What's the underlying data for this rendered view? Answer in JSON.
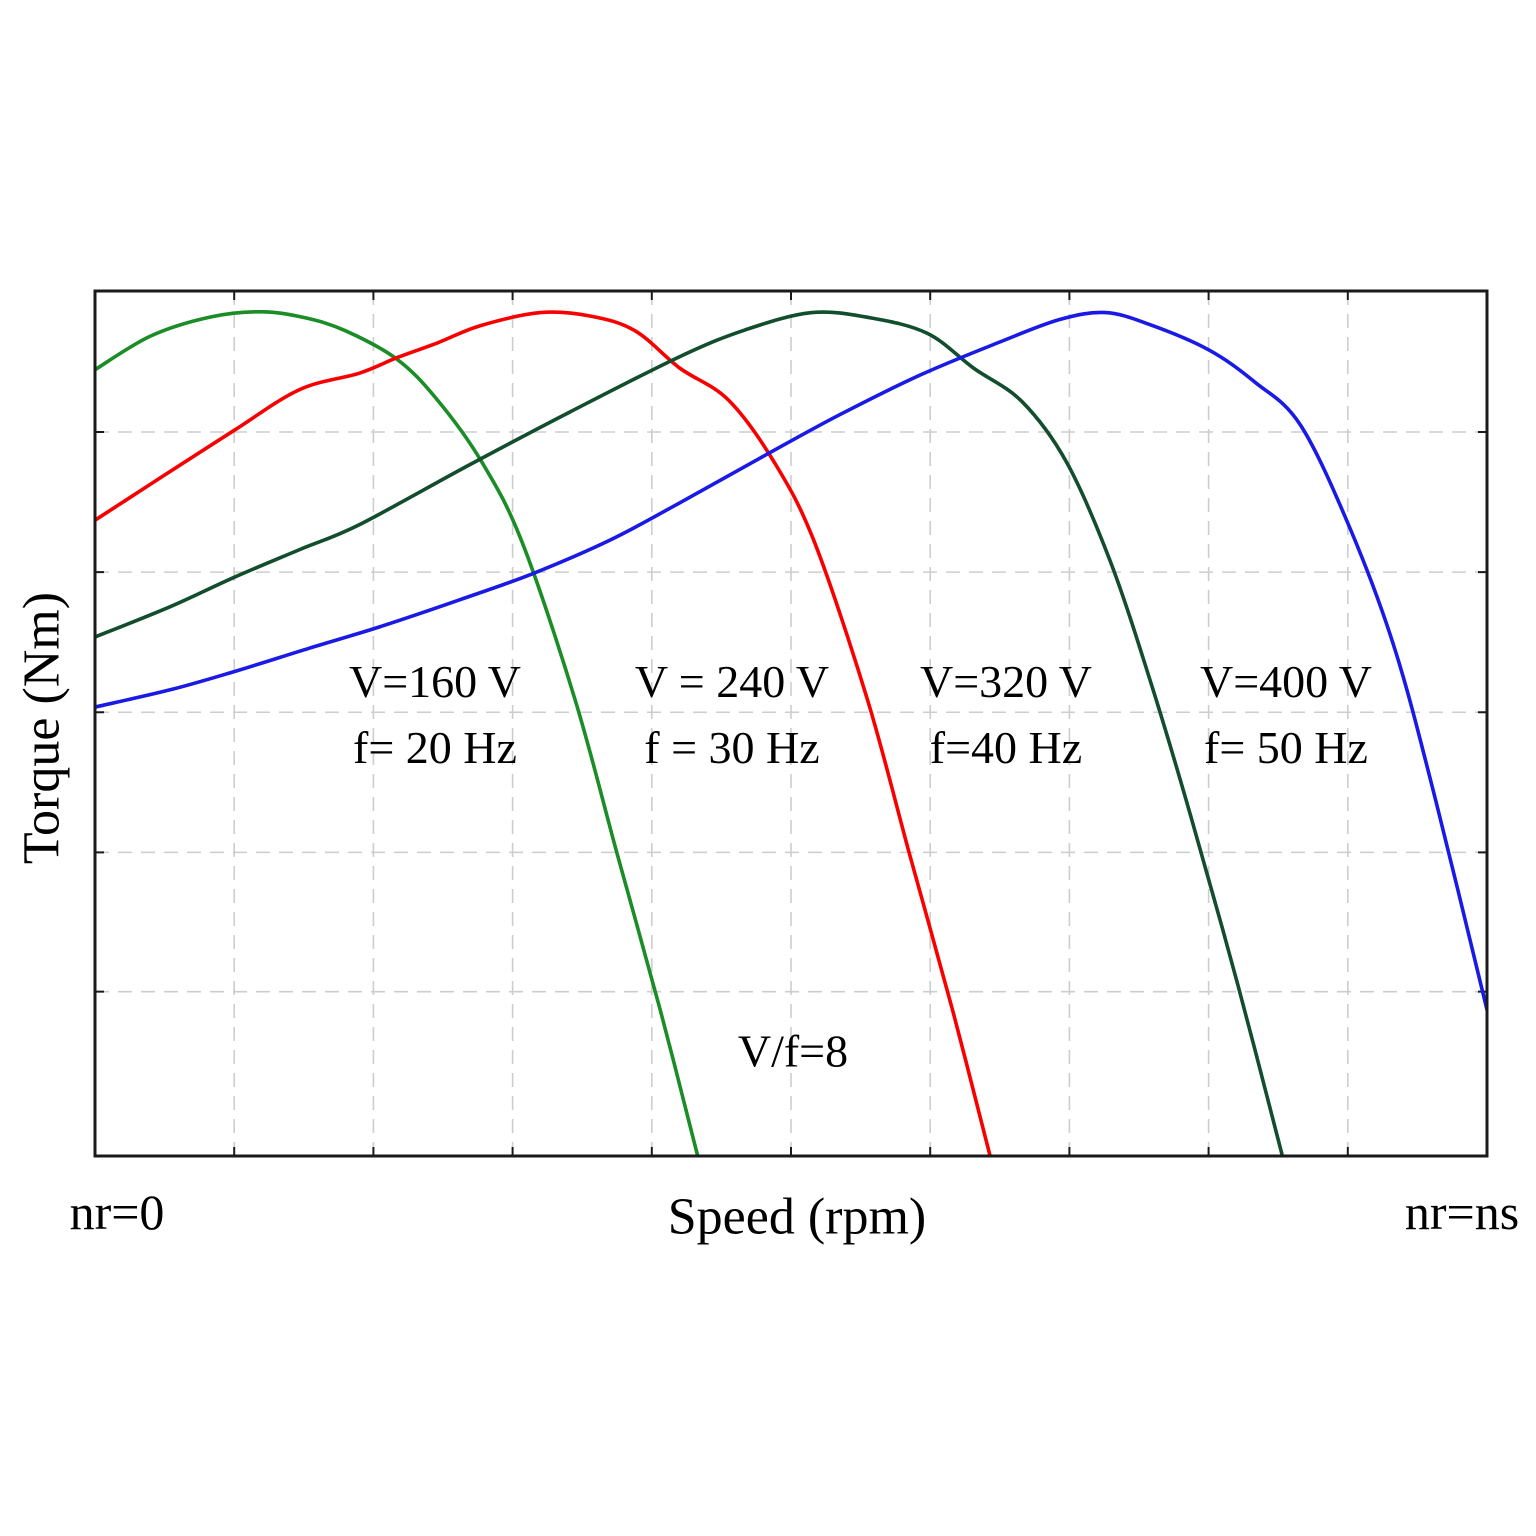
{
  "chart_data": {
    "type": "line",
    "title": "",
    "xlabel": "Speed (rpm)",
    "ylabel": "Torque (Nm)",
    "x_axis": {
      "left_end_label": "nr=0",
      "right_end_label": "nr=ns",
      "numeric_ticks_labeled": false,
      "range_note": "x normalized 0..1 spanning rotor speed nr=0 to synchronous speed nr=ns"
    },
    "y_axis": {
      "numeric_ticks_labeled": false,
      "range_note": "y normalized 0..1 spanning axis bottom (zero torque) to plot top"
    },
    "grid": {
      "visible": true,
      "style": "dashed",
      "color": "#cdcdcd",
      "v_positions": [
        0.1,
        0.2,
        0.3,
        0.4,
        0.5,
        0.6,
        0.7,
        0.8,
        0.9
      ],
      "h_positions": [
        0.19,
        0.351,
        0.513,
        0.675,
        0.837
      ]
    },
    "frame_color": "#1a1a1a",
    "annotation": {
      "text": "V/f=8"
    },
    "series": [
      {
        "name": "V=160 V, f=20 Hz",
        "label_line1": "V=160 V",
        "label_line2": "f= 20 Hz",
        "color": "#1a8d26",
        "points": [
          [
            0.0,
            0.909
          ],
          [
            0.04,
            0.948
          ],
          [
            0.083,
            0.97
          ],
          [
            0.12,
            0.976
          ],
          [
            0.151,
            0.969
          ],
          [
            0.18,
            0.954
          ],
          [
            0.217,
            0.921
          ],
          [
            0.246,
            0.874
          ],
          [
            0.278,
            0.802
          ],
          [
            0.307,
            0.709
          ],
          [
            0.345,
            0.527
          ],
          [
            0.375,
            0.35
          ],
          [
            0.406,
            0.169
          ],
          [
            0.433,
            0.0
          ]
        ]
      },
      {
        "name": "V = 240 V, f = 30 Hz",
        "label_line1": "V = 240 V",
        "label_line2": "f = 30 Hz",
        "color": "#f80000",
        "points": [
          [
            0.0,
            0.735
          ],
          [
            0.047,
            0.784
          ],
          [
            0.1,
            0.839
          ],
          [
            0.147,
            0.886
          ],
          [
            0.19,
            0.905
          ],
          [
            0.217,
            0.923
          ],
          [
            0.246,
            0.94
          ],
          [
            0.277,
            0.96
          ],
          [
            0.32,
            0.975
          ],
          [
            0.356,
            0.971
          ],
          [
            0.388,
            0.954
          ],
          [
            0.42,
            0.911
          ],
          [
            0.455,
            0.874
          ],
          [
            0.488,
            0.802
          ],
          [
            0.517,
            0.709
          ],
          [
            0.555,
            0.527
          ],
          [
            0.585,
            0.35
          ],
          [
            0.616,
            0.169
          ],
          [
            0.643,
            0.0
          ]
        ]
      },
      {
        "name": "V=320 V, f=40 Hz",
        "label_line1": "V=320 V",
        "label_line2": "f=40 Hz",
        "color": "#124d2d",
        "points": [
          [
            0.0,
            0.6
          ],
          [
            0.054,
            0.635
          ],
          [
            0.1,
            0.669
          ],
          [
            0.147,
            0.701
          ],
          [
            0.19,
            0.73
          ],
          [
            0.269,
            0.799
          ],
          [
            0.341,
            0.86
          ],
          [
            0.42,
            0.924
          ],
          [
            0.467,
            0.955
          ],
          [
            0.515,
            0.975
          ],
          [
            0.557,
            0.969
          ],
          [
            0.598,
            0.951
          ],
          [
            0.631,
            0.911
          ],
          [
            0.666,
            0.872
          ],
          [
            0.698,
            0.802
          ],
          [
            0.729,
            0.689
          ],
          [
            0.758,
            0.55
          ],
          [
            0.787,
            0.394
          ],
          [
            0.821,
            0.198
          ],
          [
            0.853,
            0.0
          ]
        ]
      },
      {
        "name": "V=400 V, f= 50 Hz",
        "label_line1": "V=400 V",
        "label_line2": "f= 50 Hz",
        "color": "#1a1ae6",
        "points": [
          [
            0.0,
            0.519
          ],
          [
            0.054,
            0.539
          ],
          [
            0.1,
            0.56
          ],
          [
            0.154,
            0.587
          ],
          [
            0.205,
            0.612
          ],
          [
            0.262,
            0.643
          ],
          [
            0.314,
            0.673
          ],
          [
            0.37,
            0.712
          ],
          [
            0.42,
            0.755
          ],
          [
            0.478,
            0.807
          ],
          [
            0.535,
            0.857
          ],
          [
            0.593,
            0.903
          ],
          [
            0.65,
            0.941
          ],
          [
            0.693,
            0.967
          ],
          [
            0.726,
            0.975
          ],
          [
            0.758,
            0.961
          ],
          [
            0.8,
            0.932
          ],
          [
            0.833,
            0.895
          ],
          [
            0.866,
            0.845
          ],
          [
            0.902,
            0.724
          ],
          [
            0.934,
            0.585
          ],
          [
            0.963,
            0.412
          ],
          [
            1.0,
            0.169
          ]
        ]
      }
    ]
  }
}
